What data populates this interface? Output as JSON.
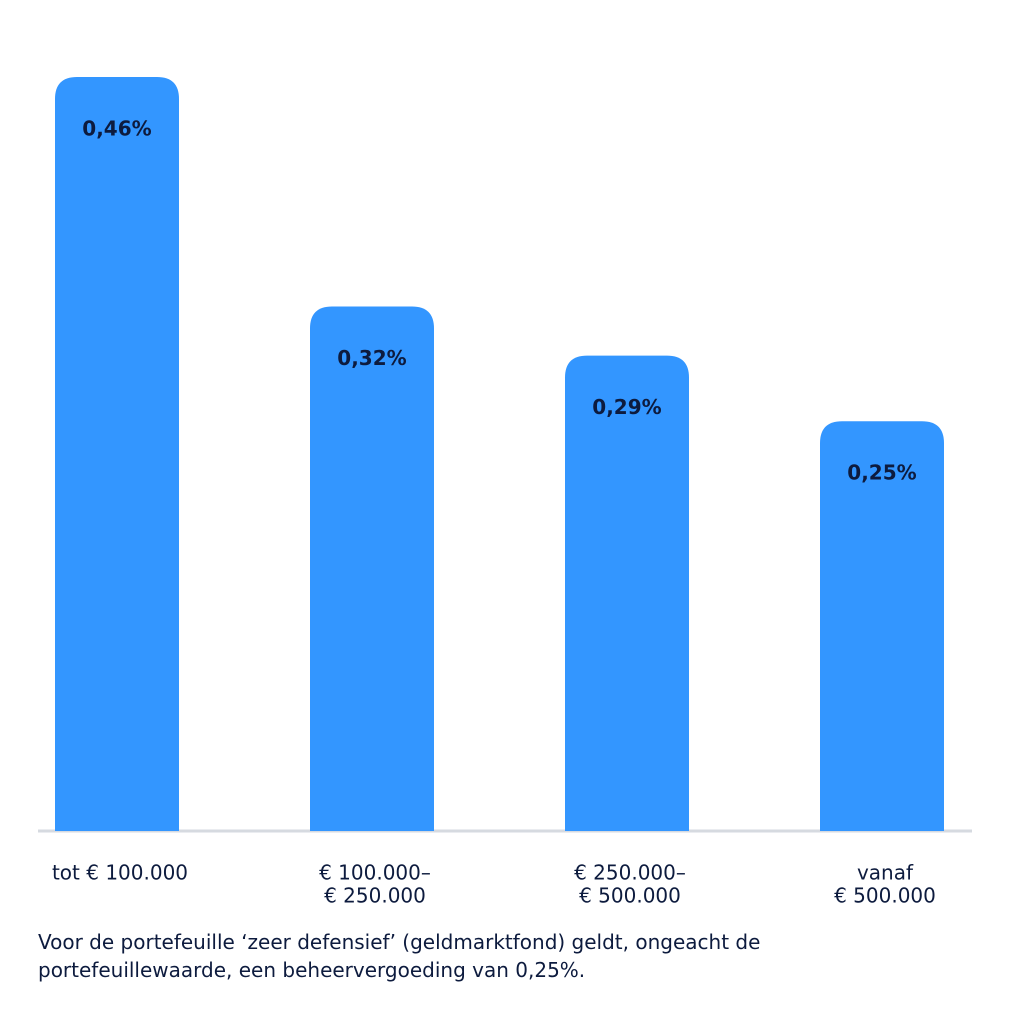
{
  "chart_data": {
    "type": "bar",
    "categories": [
      [
        "tot € 100.000"
      ],
      [
        "€ 100.000–",
        "€ 250.000"
      ],
      [
        "€ 250.000–",
        "€ 500.000"
      ],
      [
        "vanaf",
        "€ 500.000"
      ]
    ],
    "values": [
      0.46,
      0.32,
      0.29,
      0.25
    ],
    "value_labels": [
      "0,46%",
      "0,32%",
      "0,29%",
      "0,25%"
    ],
    "color": "#3396ff",
    "footnote": "Voor de portefeuille ‘zeer defensief’ (geldmarktfond) geldt, ongeacht de portefeuillewaarde, een beheervergoeding van 0,25%."
  }
}
